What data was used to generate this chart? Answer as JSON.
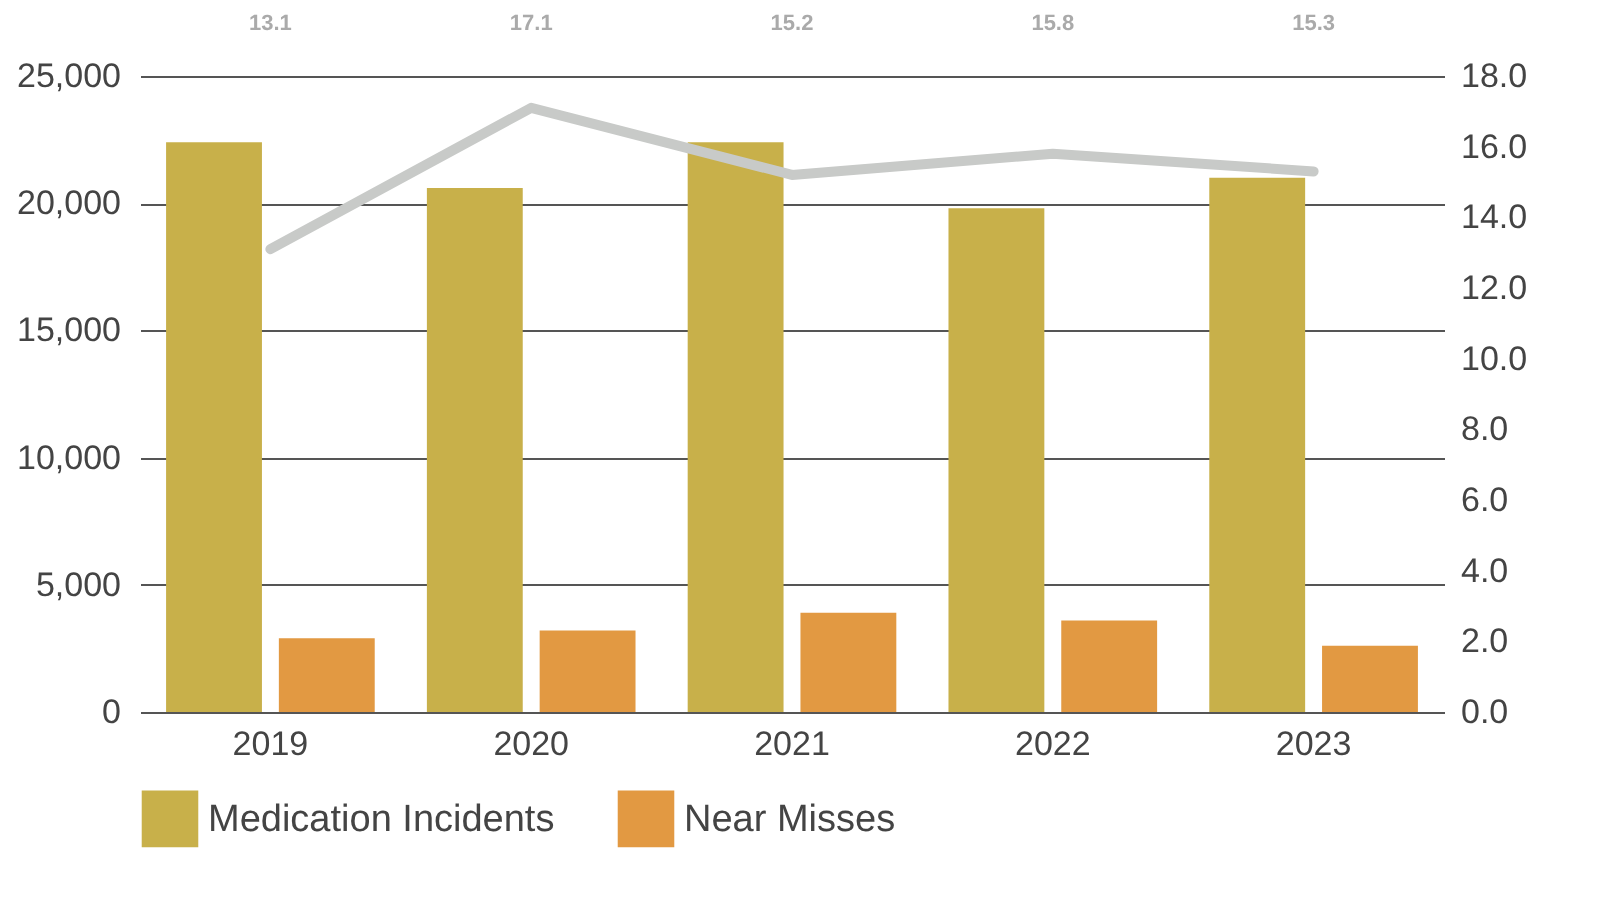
{
  "chart_data": {
    "type": "bar",
    "categories": [
      "2019",
      "2020",
      "2021",
      "2022",
      "2023"
    ],
    "series": [
      {
        "name": "Medication Incidents",
        "color": "#c8b04a",
        "values": [
          22400,
          20600,
          22400,
          19800,
          21000
        ]
      },
      {
        "name": "Near Misses",
        "color": "#e29942",
        "values": [
          2900,
          3200,
          3900,
          3600,
          2600
        ]
      },
      {
        "type": "line",
        "axis": "y2",
        "color": "#c8cac8",
        "values": [
          13.1,
          17.1,
          15.2,
          15.8,
          15.3
        ],
        "value_labels": [
          "13.1",
          "17.1",
          "15.2",
          "15.8",
          "15.3"
        ]
      }
    ],
    "ylim": [
      0,
      25000
    ],
    "yticks": [
      0,
      {
        "value": 5000,
        "label": "5,000"
      },
      {
        "value": 10000,
        "label": "10,000"
      },
      {
        "value": 15000,
        "label": "15,000"
      },
      {
        "value": 20000,
        "label": "20,000"
      },
      {
        "value": 25000,
        "label": "25,000"
      }
    ],
    "y2lim": [
      0,
      18
    ],
    "y2ticks": [
      {
        "value": 0,
        "label": "0.0"
      },
      {
        "value": 2,
        "label": "2.0"
      },
      {
        "value": 4,
        "label": "4.0"
      },
      {
        "value": 6,
        "label": "6.0"
      },
      {
        "value": 8,
        "label": "8.0"
      },
      {
        "value": 10,
        "label": "10.0"
      },
      {
        "value": 12,
        "label": "12.0"
      },
      {
        "value": 14,
        "label": "14.0"
      },
      {
        "value": 16,
        "label": "16.0"
      },
      {
        "value": 18,
        "label": "18.0"
      }
    ],
    "grid": "y",
    "legend": "bottom"
  }
}
